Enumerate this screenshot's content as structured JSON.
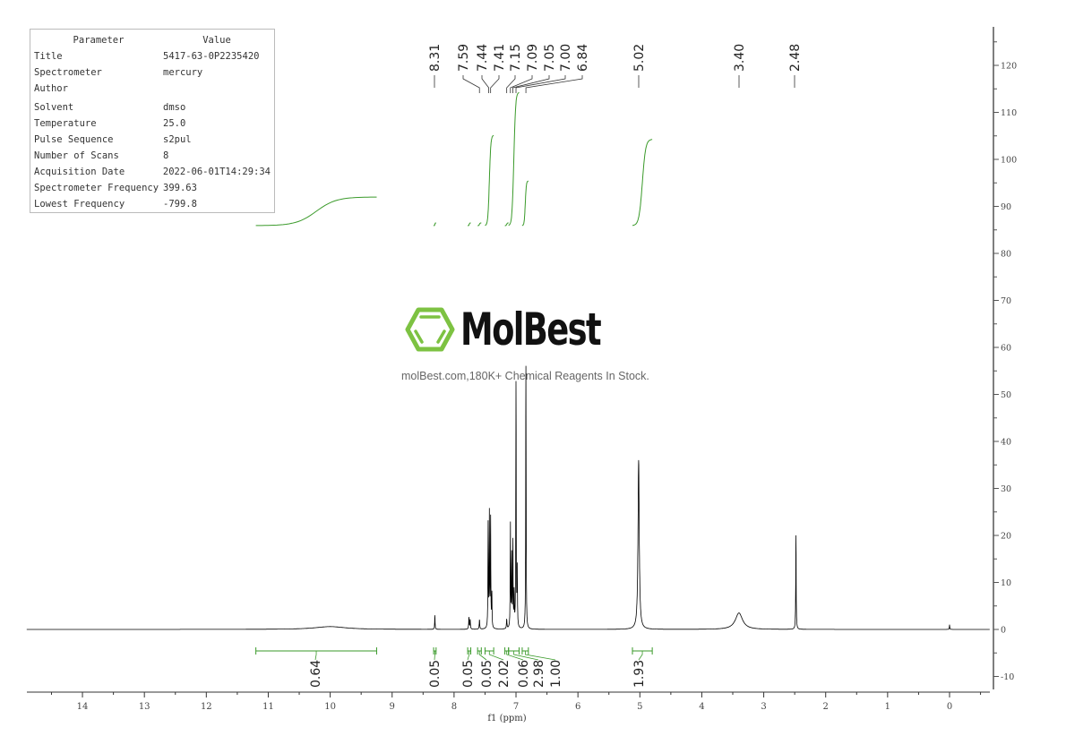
{
  "parameters": {
    "header": {
      "param": "Parameter",
      "value": "Value"
    },
    "rows": [
      {
        "param": "Title",
        "value": "5417-63-0P2235420"
      },
      {
        "param": "Spectrometer",
        "value": "mercury"
      },
      {
        "param": "Author",
        "value": ""
      },
      {
        "param": "Solvent",
        "value": "dmso"
      },
      {
        "param": "Temperature",
        "value": "25.0"
      },
      {
        "param": "Pulse Sequence",
        "value": "s2pul"
      },
      {
        "param": "Number of Scans",
        "value": "8"
      },
      {
        "param": "Acquisition Date",
        "value": "2022-06-01T14:29:34"
      },
      {
        "param": "Spectrometer Frequency",
        "value": "399.63"
      },
      {
        "param": "Lowest Frequency",
        "value": "-799.8"
      }
    ]
  },
  "watermark": {
    "brand": "MolBest",
    "tagline": "molBest.com,180K+ Chemical Reagents In Stock.",
    "brand_color": "#7dc242"
  },
  "chart_data": {
    "type": "line",
    "subtype": "1H NMR spectrum",
    "xlabel": "f1 (ppm)",
    "ylabel": "",
    "xlim": [
      14.9,
      -0.65
    ],
    "x_reversed": true,
    "ylim": [
      -13,
      131
    ],
    "y_axis_side": "right",
    "x_ticks": [
      "14",
      "13",
      "12",
      "11",
      "10",
      "9",
      "8",
      "7",
      "6",
      "5",
      "4",
      "3",
      "2",
      "1",
      "0"
    ],
    "y_ticks": [
      "-10",
      "0",
      "10",
      "20",
      "30",
      "40",
      "50",
      "60",
      "70",
      "80",
      "90",
      "100",
      "110",
      "120"
    ],
    "grid": false,
    "spectrum_color": "#000000",
    "integral_color": "#3a9a2a",
    "peaks": [
      {
        "ppm": 10.0,
        "height": 0.6,
        "width": 0.3
      },
      {
        "ppm": 8.31,
        "height": 3,
        "width": 0.004
      },
      {
        "ppm": 7.76,
        "height": 2.5,
        "width": 0.005
      },
      {
        "ppm": 7.74,
        "height": 2,
        "width": 0.005
      },
      {
        "ppm": 7.59,
        "height": 2,
        "width": 0.005
      },
      {
        "ppm": 7.45,
        "height": 22,
        "width": 0.004
      },
      {
        "ppm": 7.43,
        "height": 24,
        "width": 0.004
      },
      {
        "ppm": 7.41,
        "height": 23,
        "width": 0.004
      },
      {
        "ppm": 7.39,
        "height": 7,
        "width": 0.004
      },
      {
        "ppm": 7.15,
        "height": 2,
        "width": 0.005
      },
      {
        "ppm": 7.09,
        "height": 22,
        "width": 0.004
      },
      {
        "ppm": 7.07,
        "height": 15,
        "width": 0.004
      },
      {
        "ppm": 7.05,
        "height": 18,
        "width": 0.004
      },
      {
        "ppm": 7.03,
        "height": 7,
        "width": 0.004
      },
      {
        "ppm": 7.0,
        "height": 52,
        "width": 0.004
      },
      {
        "ppm": 6.98,
        "height": 12,
        "width": 0.004
      },
      {
        "ppm": 6.84,
        "height": 56,
        "width": 0.004
      },
      {
        "ppm": 5.02,
        "height": 36,
        "width": 0.012
      },
      {
        "ppm": 3.4,
        "height": 3.5,
        "width": 0.07
      },
      {
        "ppm": 2.48,
        "height": 20,
        "width": 0.004
      },
      {
        "ppm": 0.0,
        "height": 1,
        "width": 0.004
      }
    ],
    "peak_labels": [
      "8.31",
      "7.59",
      "7.44",
      "7.41",
      "7.15",
      "7.09",
      "7.05",
      "7.00",
      "6.84",
      "5.02",
      "3.40",
      "2.48"
    ],
    "integrals": [
      {
        "from": 11.2,
        "to": 9.25,
        "value": "0.64"
      },
      {
        "from": 8.33,
        "to": 8.29,
        "value": "0.05"
      },
      {
        "from": 7.78,
        "to": 7.73,
        "value": "0.05"
      },
      {
        "from": 7.62,
        "to": 7.56,
        "value": "0.05"
      },
      {
        "from": 7.5,
        "to": 7.36,
        "value": "2.02"
      },
      {
        "from": 7.18,
        "to": 7.12,
        "value": "0.06"
      },
      {
        "from": 7.12,
        "to": 6.95,
        "value": "2.98"
      },
      {
        "from": 6.9,
        "to": 6.8,
        "value": "1.00"
      },
      {
        "from": 5.12,
        "to": 4.8,
        "value": "1.93"
      }
    ]
  }
}
